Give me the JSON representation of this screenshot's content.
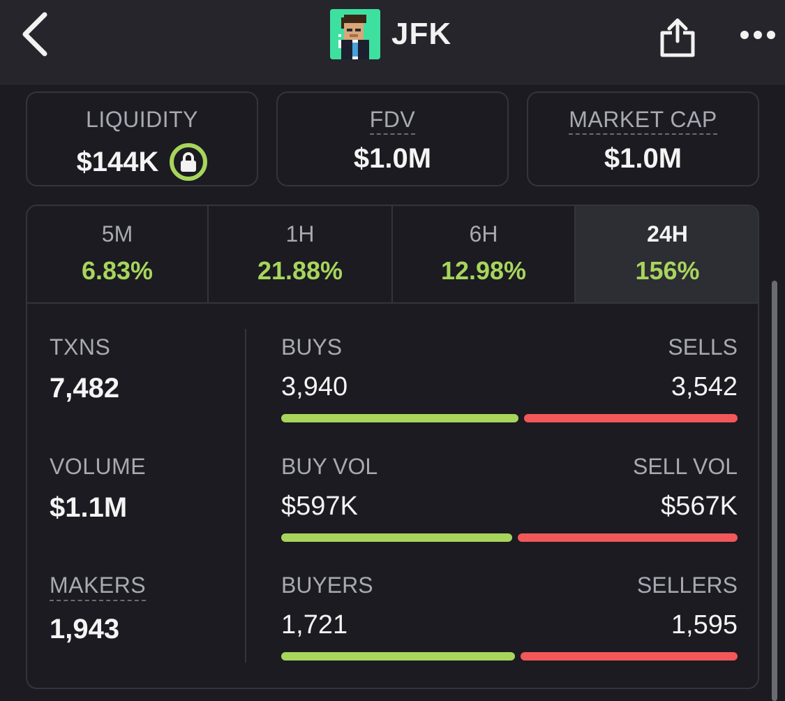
{
  "header": {
    "title": "JFK",
    "back_icon": "chevron-left-icon",
    "share_icon": "share-icon",
    "more_icon": "more-horizontal-icon"
  },
  "stats": {
    "liquidity": {
      "label": "LIQUIDITY",
      "value": "$144K",
      "locked": true
    },
    "fdv": {
      "label": "FDV",
      "value": "$1.0M"
    },
    "market_cap": {
      "label": "MARKET CAP",
      "value": "$1.0M"
    }
  },
  "timeframes": [
    {
      "label": "5M",
      "change": "6.83%"
    },
    {
      "label": "1H",
      "change": "21.88%"
    },
    {
      "label": "6H",
      "change": "12.98%"
    },
    {
      "label": "24H",
      "change": "156%",
      "active": true
    }
  ],
  "metrics": {
    "txns": {
      "label": "TXNS",
      "value": "7,482"
    },
    "volume": {
      "label": "VOLUME",
      "value": "$1.1M"
    },
    "makers": {
      "label": "MAKERS",
      "value": "1,943"
    }
  },
  "breakdown": {
    "buys": {
      "left_label": "BUYS",
      "left_value": "3,940",
      "right_label": "SELLS",
      "right_value": "3,542",
      "buy_share": 0.527
    },
    "vol": {
      "left_label": "BUY VOL",
      "left_value": "$597K",
      "right_label": "SELL VOL",
      "right_value": "$567K",
      "buy_share": 0.513
    },
    "makers": {
      "left_label": "BUYERS",
      "left_value": "1,721",
      "right_label": "SELLERS",
      "right_value": "1,595",
      "buy_share": 0.519
    }
  },
  "colors": {
    "positive": "#a7d55c",
    "negative": "#f2575a",
    "background": "#1b1b21",
    "header": "#25252b",
    "avatar_bg": "#3ee0a0"
  }
}
